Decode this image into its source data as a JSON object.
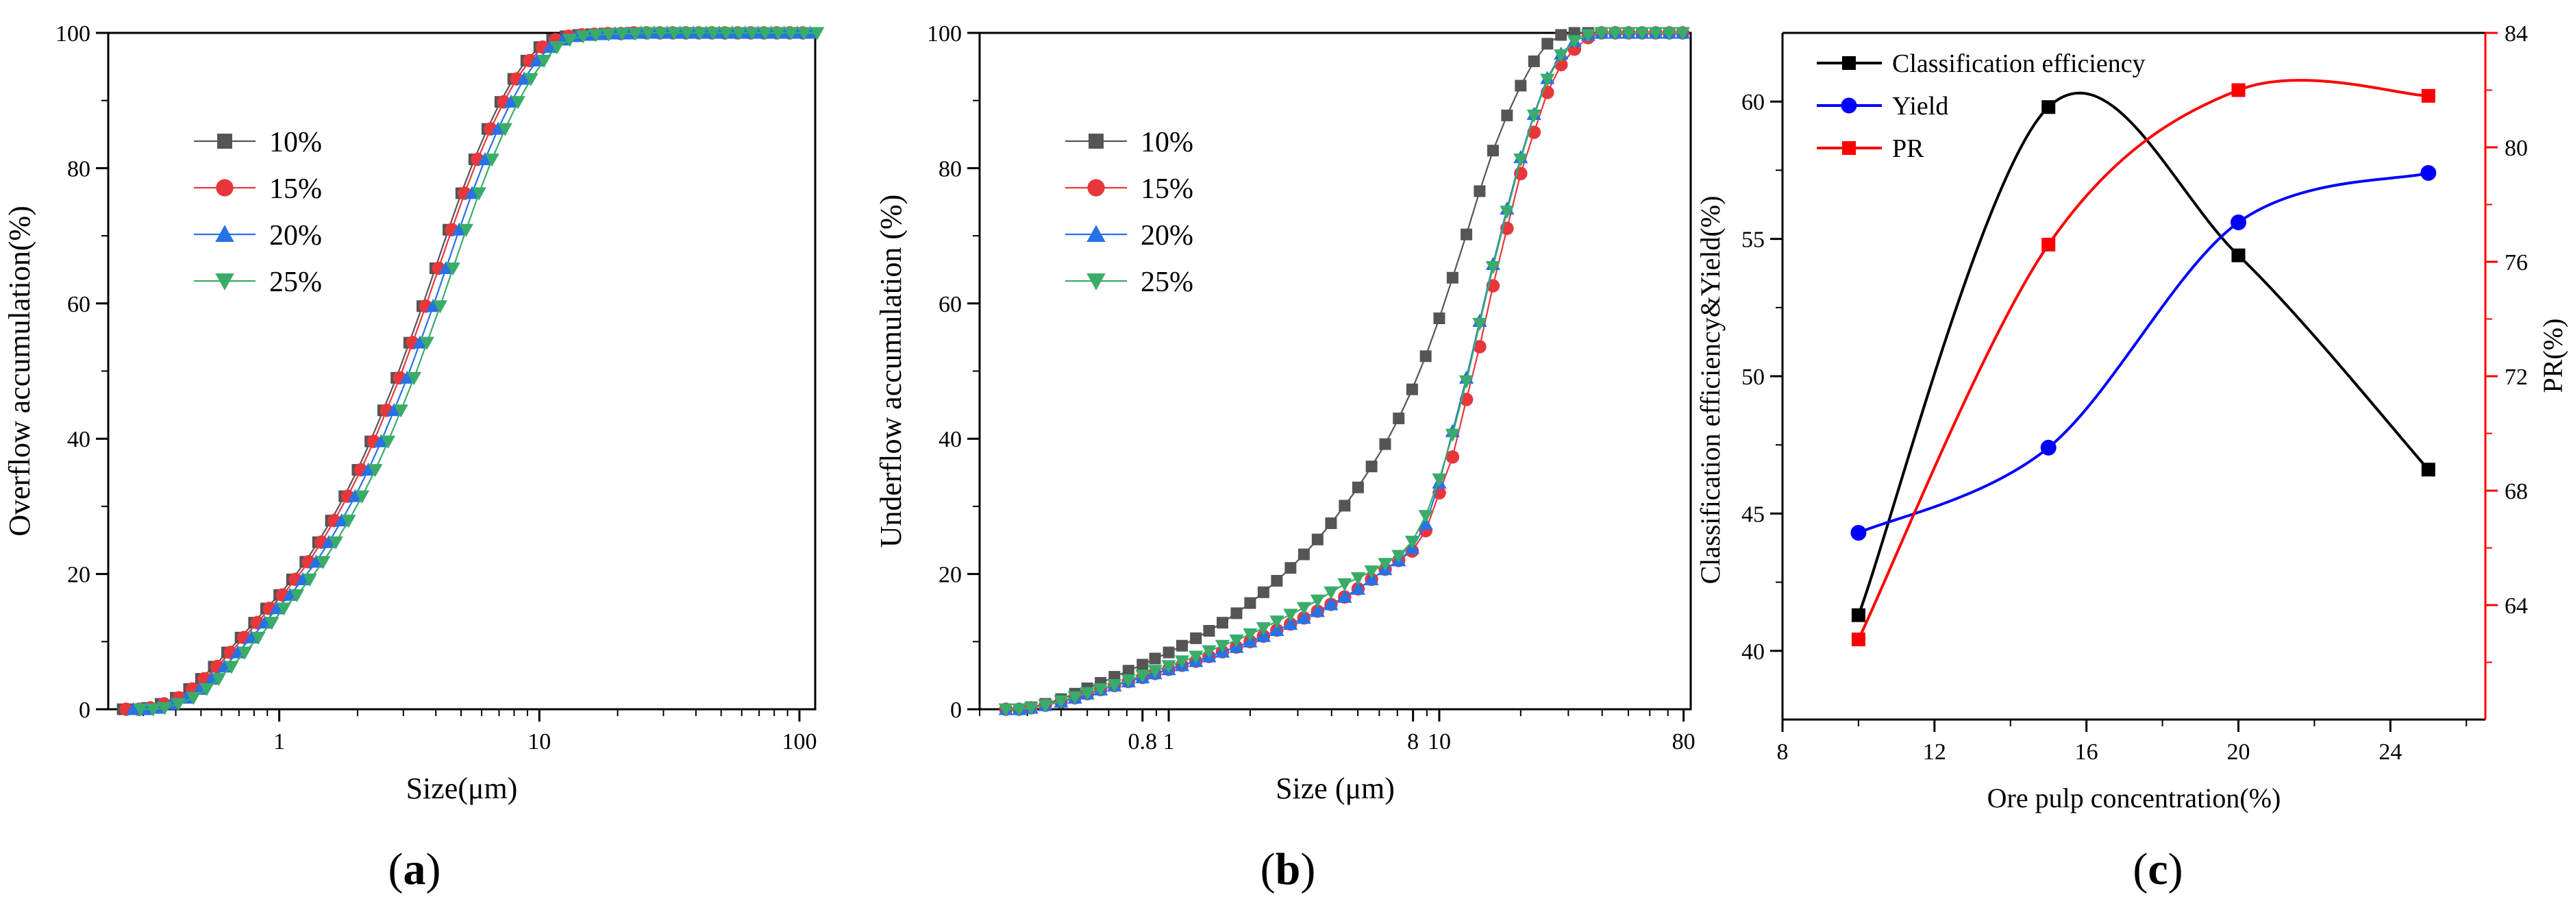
{
  "figure": {
    "panels": [
      {
        "open": "(",
        "letter": "a",
        "close": ")"
      },
      {
        "open": "(",
        "letter": "b",
        "close": ")"
      },
      {
        "open": "(",
        "letter": "c",
        "close": ")"
      }
    ]
  },
  "chart_data": [
    {
      "id": "a",
      "type": "line",
      "xscale": "log",
      "xlabel": "Size(μm)",
      "ylabel": "Overflow accumulation(%)",
      "xlim": [
        0.22,
        115
      ],
      "ylim": [
        0,
        100
      ],
      "xticks": [
        1,
        10,
        100
      ],
      "xtick_labels": [
        "1",
        "10",
        "100"
      ],
      "yticks": [
        0,
        20,
        40,
        60,
        80,
        100
      ],
      "ytick_labels": [
        "0",
        "20",
        "40",
        "60",
        "80",
        "100"
      ],
      "legend_position": "upper-left",
      "series": [
        {
          "name": "10%",
          "color": "#555555",
          "marker": "square",
          "shift": 0.0
        },
        {
          "name": "15%",
          "color": "#e8373c",
          "marker": "circle",
          "shift": 0.03
        },
        {
          "name": "20%",
          "color": "#2672e6",
          "marker": "triangle-up",
          "shift": 0.1
        },
        {
          "name": "25%",
          "color": "#3aac6a",
          "marker": "triangle-down",
          "shift": 0.17
        }
      ],
      "x": [
        0.25,
        0.28,
        0.31,
        0.35,
        0.4,
        0.45,
        0.5,
        0.56,
        0.63,
        0.71,
        0.8,
        0.89,
        1.0,
        1.12,
        1.26,
        1.41,
        1.58,
        1.78,
        2.0,
        2.24,
        2.51,
        2.82,
        3.16,
        3.55,
        3.98,
        4.47,
        5.01,
        5.62,
        6.31,
        7.08,
        7.94,
        8.91,
        10.0,
        11.2,
        12.6,
        14.1,
        15.8,
        17.8,
        20.0,
        22.4,
        25.1,
        28.2,
        31.6,
        35.5,
        39.8,
        44.7,
        50.1,
        56.2,
        63.1,
        70.8,
        79.4,
        89.1,
        100
      ],
      "base_values": [
        0,
        0,
        0.2,
        0.8,
        1.7,
        3.0,
        4.5,
        6.3,
        8.4,
        10.6,
        12.8,
        14.9,
        16.9,
        19.2,
        21.8,
        24.7,
        27.9,
        31.5,
        35.4,
        39.6,
        44.2,
        49.0,
        54.2,
        59.6,
        65.2,
        70.9,
        76.3,
        81.3,
        85.8,
        89.8,
        93.2,
        95.9,
        97.9,
        99.0,
        99.5,
        99.7,
        99.8,
        99.9,
        99.9,
        100,
        100,
        100,
        100,
        100,
        100,
        100,
        100,
        100,
        100,
        100,
        100,
        100,
        100
      ]
    },
    {
      "id": "b",
      "type": "line",
      "xscale": "log",
      "xlabel": "Size (μm)",
      "ylabel": "Underflow accumulation (%)",
      "xlim": [
        0.2,
        85
      ],
      "ylim": [
        0,
        100
      ],
      "xticks": [
        0.8,
        1,
        8,
        10,
        80
      ],
      "xtick_labels": [
        "0.8",
        "1",
        "8",
        "10",
        "80"
      ],
      "yticks": [
        0,
        20,
        40,
        60,
        80,
        100
      ],
      "ytick_labels": [
        "0",
        "20",
        "40",
        "60",
        "80",
        "100"
      ],
      "legend_position": "upper-left",
      "series": [
        {
          "name": "10%",
          "color": "#555555",
          "marker": "square",
          "x": [
            0.25,
            0.28,
            0.31,
            0.35,
            0.4,
            0.45,
            0.5,
            0.56,
            0.63,
            0.71,
            0.8,
            0.89,
            1.0,
            1.12,
            1.26,
            1.41,
            1.58,
            1.78,
            2.0,
            2.24,
            2.51,
            2.82,
            3.16,
            3.55,
            3.98,
            4.47,
            5.01,
            5.62,
            6.31,
            7.08,
            7.94,
            8.91,
            10.0,
            11.2,
            12.6,
            14.1,
            15.8,
            17.8,
            20.0,
            22.4,
            25.1,
            28.2,
            31.6,
            35.5,
            39.8,
            44.7,
            50.1,
            56.2,
            63.1,
            70.8,
            79.4
          ],
          "values": [
            0,
            0,
            0.3,
            0.8,
            1.5,
            2.3,
            3.1,
            3.9,
            4.8,
            5.7,
            6.6,
            7.5,
            8.4,
            9.4,
            10.5,
            11.6,
            12.8,
            14.2,
            15.7,
            17.3,
            19.0,
            20.9,
            22.9,
            25.1,
            27.5,
            30.1,
            32.8,
            35.9,
            39.2,
            43.0,
            47.3,
            52.2,
            57.8,
            63.8,
            70.2,
            76.6,
            82.6,
            87.8,
            92.2,
            95.8,
            98.4,
            99.7,
            100,
            100,
            100,
            100,
            100,
            100,
            100,
            100,
            100
          ]
        },
        {
          "name": "15%",
          "color": "#e8373c",
          "marker": "circle",
          "x": [
            0.25,
            0.28,
            0.31,
            0.35,
            0.4,
            0.45,
            0.5,
            0.56,
            0.63,
            0.71,
            0.8,
            0.89,
            1.0,
            1.12,
            1.26,
            1.41,
            1.58,
            1.78,
            2.0,
            2.24,
            2.51,
            2.82,
            3.16,
            3.55,
            3.98,
            4.47,
            5.01,
            5.62,
            6.31,
            7.08,
            7.94,
            8.91,
            10.0,
            11.2,
            12.6,
            14.1,
            15.8,
            17.8,
            20.0,
            22.4,
            25.1,
            28.2,
            31.6,
            35.5,
            39.8,
            44.7,
            50.1,
            56.2,
            63.1,
            70.8,
            79.4
          ],
          "values": [
            0,
            0,
            0.2,
            0.6,
            1.1,
            1.7,
            2.3,
            2.9,
            3.5,
            4.1,
            4.7,
            5.3,
            5.9,
            6.5,
            7.1,
            7.8,
            8.5,
            9.2,
            10.0,
            10.8,
            11.7,
            12.6,
            13.5,
            14.5,
            15.5,
            16.6,
            17.8,
            19.2,
            20.7,
            22.0,
            23.4,
            26.4,
            32.0,
            37.3,
            45.8,
            53.6,
            62.6,
            71.1,
            79.2,
            85.3,
            91.2,
            95.3,
            97.6,
            99.3,
            100,
            100,
            100,
            100,
            100,
            100,
            100
          ]
        },
        {
          "name": "20%",
          "color": "#2672e6",
          "marker": "triangle-up",
          "x": [
            0.25,
            0.28,
            0.31,
            0.35,
            0.4,
            0.45,
            0.5,
            0.56,
            0.63,
            0.71,
            0.8,
            0.89,
            1.0,
            1.12,
            1.26,
            1.41,
            1.58,
            1.78,
            2.0,
            2.24,
            2.51,
            2.82,
            3.16,
            3.55,
            3.98,
            4.47,
            5.01,
            5.62,
            6.31,
            7.08,
            7.94,
            8.91,
            10.0,
            11.2,
            12.6,
            14.1,
            15.8,
            17.8,
            20.0,
            22.4,
            25.1,
            28.2,
            31.6,
            35.5,
            39.8,
            44.7,
            50.1,
            56.2,
            63.1,
            70.8,
            79.4
          ],
          "values": [
            0,
            0,
            0.2,
            0.6,
            1.1,
            1.7,
            2.3,
            2.9,
            3.5,
            4.1,
            4.7,
            5.3,
            5.9,
            6.5,
            7.1,
            7.8,
            8.5,
            9.2,
            10.0,
            10.8,
            11.7,
            12.6,
            13.5,
            14.5,
            15.5,
            16.6,
            17.8,
            19.2,
            20.7,
            22.0,
            23.8,
            27.4,
            33.5,
            41.1,
            49.0,
            57.4,
            65.8,
            74.0,
            81.6,
            88.0,
            93.3,
            96.9,
            98.8,
            99.7,
            100,
            100,
            100,
            100,
            100,
            100,
            100
          ]
        },
        {
          "name": "25%",
          "color": "#3aac6a",
          "marker": "triangle-down",
          "x": [
            0.25,
            0.28,
            0.31,
            0.35,
            0.4,
            0.45,
            0.5,
            0.56,
            0.63,
            0.71,
            0.8,
            0.89,
            1.0,
            1.12,
            1.26,
            1.41,
            1.58,
            1.78,
            2.0,
            2.24,
            2.51,
            2.82,
            3.16,
            3.55,
            3.98,
            4.47,
            5.01,
            5.62,
            6.31,
            7.08,
            7.94,
            8.91,
            10.0,
            11.2,
            12.6,
            14.1,
            15.8,
            17.8,
            20.0,
            22.4,
            25.1,
            28.2,
            31.6,
            35.5,
            39.8,
            44.7,
            50.1,
            56.2,
            63.1,
            70.8,
            79.4
          ],
          "values": [
            0,
            0,
            0.2,
            0.6,
            1.2,
            1.8,
            2.4,
            3.0,
            3.6,
            4.3,
            5.0,
            5.7,
            6.4,
            7.1,
            7.8,
            8.6,
            9.4,
            10.2,
            11.1,
            12.0,
            13.0,
            14.0,
            15.0,
            16.1,
            17.3,
            18.5,
            19.4,
            20.4,
            21.5,
            22.7,
            24.8,
            28.6,
            34.0,
            40.6,
            48.5,
            57.0,
            65.4,
            73.6,
            81.3,
            87.8,
            93.1,
            96.7,
            98.8,
            99.7,
            100,
            100,
            100,
            100,
            100,
            100,
            100
          ]
        }
      ]
    },
    {
      "id": "c",
      "type": "line",
      "xlabel": "Ore pulp concentration(%)",
      "ylabel": "Classification efficiency&Yield(%)",
      "y2label": "PR(%)",
      "xlim": [
        8,
        26.5
      ],
      "ylim": [
        37.5,
        62.5
      ],
      "y2lim": [
        60,
        84
      ],
      "xticks": [
        8,
        12,
        16,
        20,
        24
      ],
      "xtick_labels": [
        "8",
        "12",
        "16",
        "20",
        "24"
      ],
      "yticks": [
        40,
        45,
        50,
        55,
        60
      ],
      "ytick_labels": [
        "40",
        "45",
        "50",
        "55",
        "60"
      ],
      "y2ticks": [
        64,
        68,
        72,
        76,
        80,
        84
      ],
      "y2tick_labels": [
        "64",
        "68",
        "72",
        "76",
        "80",
        "84"
      ],
      "legend_position": "upper-left",
      "series": [
        {
          "name": "Classification efficiency",
          "color": "#000000",
          "marker": "square",
          "axis": "left",
          "x": [
            10,
            15,
            20,
            25
          ],
          "values": [
            41.3,
            59.8,
            54.4,
            46.6
          ]
        },
        {
          "name": "Yield",
          "color": "#0000ff",
          "marker": "circle",
          "axis": "left",
          "x": [
            10,
            15,
            20,
            25
          ],
          "values": [
            44.3,
            47.4,
            55.6,
            57.4
          ]
        },
        {
          "name": "PR",
          "color": "#ff0000",
          "marker": "square",
          "axis": "right",
          "x": [
            10,
            15,
            20,
            25
          ],
          "values": [
            62.8,
            76.6,
            82.0,
            81.8
          ]
        }
      ]
    }
  ]
}
